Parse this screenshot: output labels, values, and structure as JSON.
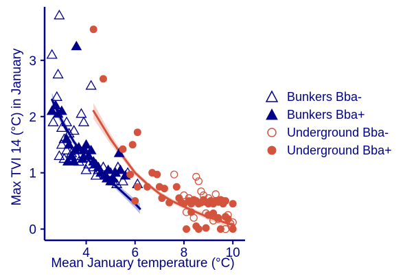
{
  "chart_data": {
    "type": "scatter",
    "xlabel": "Mean January temperature (°C)",
    "ylabel": "Max TVI 14 (°C) in January",
    "xlim": [
      2.3,
      10.5
    ],
    "ylim": [
      -0.2,
      3.95
    ],
    "x_ticks": [
      4,
      6,
      8,
      10
    ],
    "y_ticks": [
      0,
      1,
      2,
      3
    ],
    "grid": false,
    "legend_position": "right",
    "colors": {
      "bunkers": "#00008b",
      "underground": "#d4533d",
      "axis": "#00008b"
    },
    "series": [
      {
        "name": "Bunkers Bba-",
        "marker": "triangle-open",
        "color": "#00008b",
        "points": [
          [
            2.9,
            3.8
          ],
          [
            2.6,
            3.1
          ],
          [
            2.85,
            2.75
          ],
          [
            2.8,
            2.35
          ],
          [
            2.65,
            1.9
          ],
          [
            3.0,
            1.8
          ],
          [
            3.2,
            1.9
          ],
          [
            3.1,
            1.6
          ],
          [
            3.3,
            1.7
          ],
          [
            3.5,
            1.75
          ],
          [
            3.0,
            1.5
          ],
          [
            3.2,
            1.4
          ],
          [
            3.4,
            1.35
          ],
          [
            2.9,
            1.3
          ],
          [
            3.1,
            1.25
          ],
          [
            3.6,
            1.3
          ],
          [
            3.7,
            1.2
          ],
          [
            3.8,
            2.05
          ],
          [
            3.9,
            1.9
          ],
          [
            4.2,
            2.55
          ],
          [
            4.0,
            1.35
          ],
          [
            4.1,
            1.15
          ],
          [
            4.0,
            1.05
          ],
          [
            4.3,
            1.1
          ],
          [
            4.5,
            1.05
          ],
          [
            4.7,
            1.1
          ],
          [
            4.8,
            0.95
          ],
          [
            5.0,
            1.0
          ],
          [
            5.1,
            0.85
          ],
          [
            5.25,
            0.8
          ],
          [
            5.3,
            1.1
          ],
          [
            5.5,
            0.85
          ],
          [
            5.7,
            1.0
          ],
          [
            6.1,
            0.8
          ],
          [
            4.4,
            0.95
          ]
        ]
      },
      {
        "name": "Bunkers Bba+",
        "marker": "triangle-filled",
        "color": "#00008b",
        "points": [
          [
            3.6,
            3.25
          ],
          [
            2.6,
            2.1
          ],
          [
            2.75,
            2.2
          ],
          [
            2.85,
            2.05
          ],
          [
            3.0,
            2.1
          ],
          [
            3.2,
            1.6
          ],
          [
            3.3,
            1.5
          ],
          [
            3.25,
            1.2
          ],
          [
            3.4,
            1.3
          ],
          [
            3.55,
            1.4
          ],
          [
            3.7,
            1.45
          ],
          [
            3.9,
            1.4
          ],
          [
            4.0,
            1.5
          ],
          [
            3.85,
            1.25
          ],
          [
            4.1,
            1.3
          ],
          [
            4.2,
            1.4
          ],
          [
            4.3,
            1.2
          ],
          [
            4.4,
            1.15
          ],
          [
            4.5,
            1.1
          ],
          [
            4.6,
            1.0
          ],
          [
            4.75,
            0.95
          ],
          [
            4.85,
            0.9
          ],
          [
            4.9,
            1.05
          ],
          [
            5.0,
            0.85
          ],
          [
            5.1,
            0.9
          ],
          [
            5.2,
            1.0
          ],
          [
            5.4,
            1.05
          ],
          [
            5.35,
            1.35
          ],
          [
            5.6,
            0.95
          ],
          [
            3.5,
            1.2
          ]
        ]
      },
      {
        "name": "Underground Bba-",
        "marker": "circle-open",
        "color": "#d4533d",
        "points": [
          [
            7.6,
            0.97
          ],
          [
            8.0,
            0.6
          ],
          [
            8.2,
            0.55
          ],
          [
            8.5,
            0.93
          ],
          [
            8.6,
            0.85
          ],
          [
            8.7,
            0.67
          ],
          [
            8.8,
            0.6
          ],
          [
            9.0,
            0.55
          ],
          [
            9.1,
            0.5
          ],
          [
            9.3,
            0.62
          ],
          [
            9.6,
            0.5
          ],
          [
            9.8,
            0.25
          ],
          [
            9.9,
            0.1
          ],
          [
            10.0,
            0.12
          ],
          [
            9.95,
            0.04
          ],
          [
            8.9,
            0.28
          ],
          [
            9.4,
            0.18
          ],
          [
            8.1,
            0.3
          ],
          [
            9.7,
            0.0
          ],
          [
            8.4,
            0.2
          ],
          [
            9.2,
            0.15
          ]
        ]
      },
      {
        "name": "Underground Bba+",
        "marker": "circle-filled",
        "color": "#d4533d",
        "points": [
          [
            4.3,
            3.55
          ],
          [
            4.7,
            2.67
          ],
          [
            6.1,
            1.72
          ],
          [
            5.9,
            1.5
          ],
          [
            5.5,
            1.42
          ],
          [
            5.8,
            0.97
          ],
          [
            6.1,
            0.75
          ],
          [
            6.0,
            0.5
          ],
          [
            6.5,
            0.75
          ],
          [
            6.7,
            1.0
          ],
          [
            6.9,
            0.97
          ],
          [
            7.0,
            0.75
          ],
          [
            7.1,
            0.55
          ],
          [
            7.2,
            0.72
          ],
          [
            7.4,
            0.47
          ],
          [
            7.7,
            0.75
          ],
          [
            7.8,
            0.55
          ],
          [
            7.9,
            0.47
          ],
          [
            8.0,
            0.45
          ],
          [
            8.2,
            0.5
          ],
          [
            8.3,
            0.45
          ],
          [
            8.4,
            0.52
          ],
          [
            8.5,
            0.5
          ],
          [
            8.6,
            0.45
          ],
          [
            8.7,
            0.47
          ],
          [
            8.8,
            0.52
          ],
          [
            8.9,
            0.48
          ],
          [
            9.0,
            0.45
          ],
          [
            9.1,
            0.5
          ],
          [
            9.2,
            0.45
          ],
          [
            9.3,
            0.5
          ],
          [
            9.4,
            0.48
          ],
          [
            9.5,
            0.52
          ],
          [
            9.6,
            0.45
          ],
          [
            9.7,
            0.5
          ],
          [
            10.0,
            0.45
          ],
          [
            8.1,
            0.0
          ],
          [
            8.5,
            0.05
          ],
          [
            8.6,
            0.0
          ],
          [
            8.9,
            0.02
          ],
          [
            9.0,
            0.25
          ],
          [
            9.2,
            0.28
          ],
          [
            9.4,
            0.2
          ],
          [
            9.5,
            0.0
          ],
          [
            9.7,
            0.22
          ],
          [
            9.8,
            0.18
          ],
          [
            8.3,
            0.3
          ],
          [
            10.0,
            0.0
          ]
        ]
      }
    ],
    "fits": [
      {
        "group": "Bunkers",
        "color": "#00008b",
        "band_color": "#5a6bc7",
        "points": [
          [
            2.6,
            2.3
          ],
          [
            3.0,
            1.93
          ],
          [
            3.5,
            1.55
          ],
          [
            4.0,
            1.27
          ],
          [
            4.5,
            1.05
          ],
          [
            5.0,
            0.85
          ],
          [
            5.5,
            0.65
          ],
          [
            6.0,
            0.45
          ],
          [
            6.2,
            0.36
          ]
        ],
        "band_halfwidth": [
          0.12,
          0.08,
          0.05,
          0.04,
          0.04,
          0.05,
          0.06,
          0.08,
          0.09
        ]
      },
      {
        "group": "Underground",
        "color": "#d4533d",
        "band_color": "#ef9d8c",
        "points": [
          [
            4.3,
            2.1
          ],
          [
            5.0,
            1.6
          ],
          [
            5.5,
            1.29
          ],
          [
            6.0,
            1.0
          ],
          [
            6.5,
            0.8
          ],
          [
            7.0,
            0.63
          ],
          [
            7.5,
            0.5
          ],
          [
            8.0,
            0.4
          ],
          [
            8.5,
            0.3
          ],
          [
            9.0,
            0.21
          ],
          [
            9.5,
            0.14
          ],
          [
            10.0,
            0.07
          ]
        ],
        "band_halfwidth": [
          0.14,
          0.09,
          0.06,
          0.05,
          0.04,
          0.04,
          0.04,
          0.04,
          0.04,
          0.05,
          0.06,
          0.07
        ]
      }
    ]
  }
}
